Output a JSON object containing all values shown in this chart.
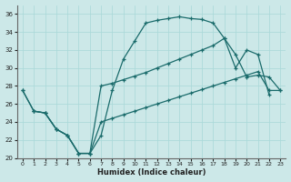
{
  "xlabel": "Humidex (Indice chaleur)",
  "bg_color": "#cce8e8",
  "line_color": "#1a6b6b",
  "xlim": [
    -0.5,
    23.5
  ],
  "ylim": [
    20,
    37
  ],
  "xticks": [
    0,
    1,
    2,
    3,
    4,
    5,
    6,
    7,
    8,
    9,
    10,
    11,
    12,
    13,
    14,
    15,
    16,
    17,
    18,
    19,
    20,
    21,
    22,
    23
  ],
  "yticks": [
    20,
    22,
    24,
    26,
    28,
    30,
    32,
    34,
    36
  ],
  "line1_x": [
    0,
    1,
    2,
    3,
    4,
    5,
    6,
    7,
    8,
    9,
    10,
    11,
    12,
    13,
    14,
    15,
    16,
    17,
    18,
    19,
    20,
    21,
    22
  ],
  "line1_y": [
    27.5,
    25.2,
    25.0,
    23.2,
    22.5,
    20.5,
    20.5,
    22.5,
    27.5,
    31.0,
    33.0,
    35.0,
    35.3,
    35.5,
    35.7,
    35.5,
    35.4,
    35.0,
    33.3,
    30.0,
    32.0,
    31.5,
    27.0
  ],
  "line2_x": [
    0,
    1,
    2,
    3,
    4,
    5,
    6,
    7,
    8,
    9,
    10,
    11,
    12,
    13,
    14,
    15,
    16,
    17,
    18,
    19,
    20,
    21,
    22,
    23
  ],
  "line2_y": [
    27.5,
    25.2,
    25.0,
    23.2,
    22.5,
    20.5,
    20.5,
    28.0,
    28.3,
    28.7,
    29.1,
    29.5,
    30.0,
    30.5,
    31.0,
    31.5,
    32.0,
    32.5,
    33.3,
    31.5,
    29.0,
    29.2,
    29.0,
    27.5
  ],
  "line3_x": [
    1,
    2,
    3,
    4,
    5,
    6,
    7,
    8,
    9,
    10,
    11,
    12,
    13,
    14,
    15,
    16,
    17,
    18,
    19,
    20,
    21,
    22,
    23
  ],
  "line3_y": [
    25.2,
    25.0,
    23.2,
    22.5,
    20.5,
    20.5,
    24.0,
    24.4,
    24.8,
    25.2,
    25.6,
    26.0,
    26.4,
    26.8,
    27.2,
    27.6,
    28.0,
    28.4,
    28.8,
    29.2,
    29.6,
    27.5,
    27.5
  ]
}
